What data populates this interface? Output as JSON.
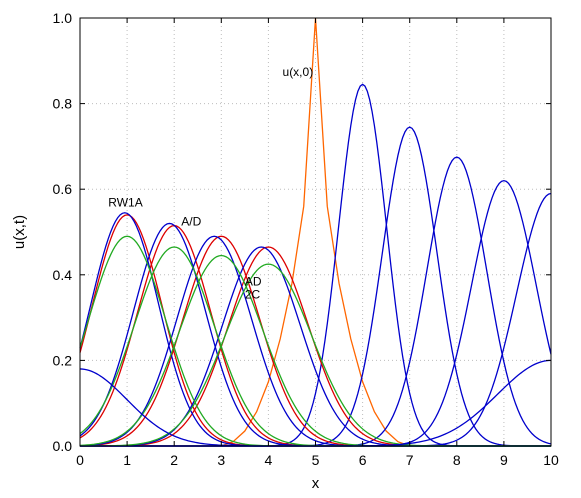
{
  "chart_data": {
    "type": "line",
    "xlabel": "x",
    "ylabel": "u(x,t)",
    "xlim": [
      0,
      10
    ],
    "ylim": [
      0,
      1.0
    ],
    "xticks": [
      "0",
      "1",
      "2",
      "3",
      "4",
      "5",
      "6",
      "7",
      "8",
      "9",
      "10"
    ],
    "yticks": [
      "0.0",
      "0.2",
      "0.4",
      "0.6",
      "0.8",
      "1.0"
    ],
    "grid": true,
    "colors": {
      "initial": "#ff6600",
      "red": "#dd0000",
      "blue": "#0000cc",
      "green": "#22aa22"
    },
    "annotations": [
      {
        "text": "u(x,0)",
        "x": 4.3,
        "y": 0.865
      },
      {
        "text": "RW1A",
        "x": 0.6,
        "y": 0.56
      },
      {
        "text": "A/D",
        "x": 2.15,
        "y": 0.515
      },
      {
        "text": "AD",
        "x": 3.5,
        "y": 0.375
      },
      {
        "text": "2C",
        "x": 3.5,
        "y": 0.345
      }
    ],
    "series": [
      {
        "color": "initial",
        "points": [
          [
            3,
            0
          ],
          [
            3.25,
            0.01
          ],
          [
            3.5,
            0.035
          ],
          [
            3.75,
            0.08
          ],
          [
            4,
            0.15
          ],
          [
            4.25,
            0.25
          ],
          [
            4.5,
            0.38
          ],
          [
            4.75,
            0.56
          ],
          [
            5,
            1.0
          ],
          [
            5.25,
            0.56
          ],
          [
            5.5,
            0.38
          ],
          [
            5.75,
            0.25
          ],
          [
            6,
            0.15
          ],
          [
            6.25,
            0.08
          ],
          [
            6.5,
            0.035
          ],
          [
            6.75,
            0.01
          ],
          [
            7,
            0
          ]
        ]
      },
      {
        "color": "blue",
        "peak": 0.845,
        "center": 6.0,
        "width": 0.72
      },
      {
        "color": "blue",
        "peak": 0.745,
        "center": 7.0,
        "width": 0.82
      },
      {
        "color": "blue",
        "peak": 0.675,
        "center": 8.0,
        "width": 0.9
      },
      {
        "color": "blue",
        "peak": 0.62,
        "center": 9.0,
        "width": 0.97
      },
      {
        "color": "blue",
        "peak": 0.59,
        "center": 10.0,
        "width": 1.03
      },
      {
        "color": "red",
        "peak": 0.54,
        "center": 1.0,
        "width": 1.05
      },
      {
        "color": "red",
        "peak": 0.515,
        "center": 2.0,
        "width": 1.1
      },
      {
        "color": "red",
        "peak": 0.49,
        "center": 3.0,
        "width": 1.15
      },
      {
        "color": "red",
        "peak": 0.465,
        "center": 4.0,
        "width": 1.2
      },
      {
        "color": "blue",
        "peak": 0.545,
        "center": 0.95,
        "width": 1.02
      },
      {
        "color": "blue",
        "peak": 0.52,
        "center": 1.9,
        "width": 1.08
      },
      {
        "color": "blue",
        "peak": 0.49,
        "center": 2.85,
        "width": 1.12
      },
      {
        "color": "blue",
        "peak": 0.465,
        "center": 3.85,
        "width": 1.17
      },
      {
        "color": "green",
        "peak": 0.49,
        "center": 1.0,
        "width": 1.15
      },
      {
        "color": "green",
        "peak": 0.465,
        "center": 2.0,
        "width": 1.2
      },
      {
        "color": "green",
        "peak": 0.445,
        "center": 3.0,
        "width": 1.25
      },
      {
        "color": "green",
        "peak": 0.425,
        "center": 4.0,
        "width": 1.3
      },
      {
        "color": "blue",
        "peak": 0.2,
        "center": 10.0,
        "width": 1.6
      },
      {
        "color": "blue",
        "peak": 0.18,
        "center": 0.0,
        "width": 1.4
      }
    ]
  }
}
